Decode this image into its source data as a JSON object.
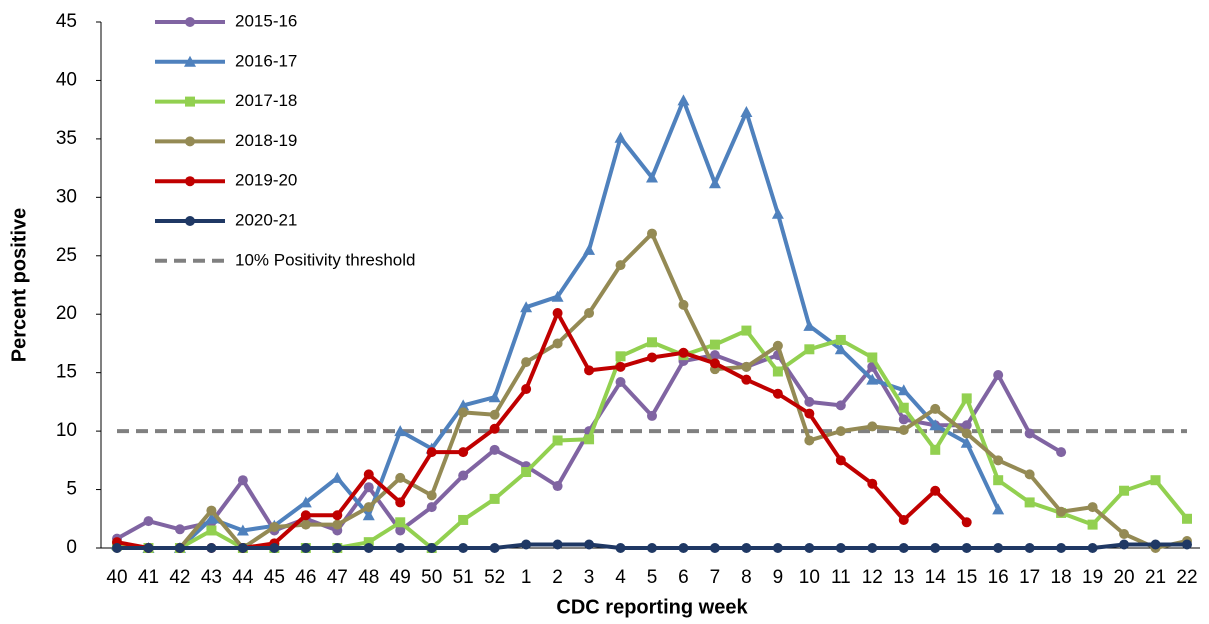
{
  "chart_data": {
    "type": "line",
    "x_label": "CDC reporting week",
    "y_label": "Percent positive",
    "categories": [
      "40",
      "41",
      "42",
      "43",
      "44",
      "45",
      "46",
      "47",
      "48",
      "49",
      "50",
      "51",
      "52",
      "1",
      "2",
      "3",
      "4",
      "5",
      "6",
      "7",
      "8",
      "9",
      "10",
      "11",
      "12",
      "13",
      "14",
      "15",
      "16",
      "17",
      "18",
      "19",
      "20",
      "21",
      "22"
    ],
    "ylim": [
      0,
      45
    ],
    "yticks": [
      0,
      5,
      10,
      15,
      20,
      25,
      30,
      35,
      40,
      45
    ],
    "grid": false,
    "legend": "top-left",
    "series": [
      {
        "name": "2015-16",
        "color": "#8064a2",
        "marker": "circle",
        "values": [
          0.8,
          2.3,
          1.6,
          2.2,
          5.8,
          1.5,
          2.5,
          1.5,
          5.2,
          1.5,
          3.5,
          6.2,
          8.4,
          7.0,
          5.3,
          10.0,
          14.2,
          11.3,
          16.0,
          16.5,
          15.5,
          16.5,
          12.5,
          12.2,
          15.5,
          11.0,
          10.5,
          10.5,
          14.8,
          9.8,
          8.2,
          null,
          null,
          null,
          null
        ]
      },
      {
        "name": "2016-17",
        "color": "#4f81bd",
        "marker": "triangle",
        "values": [
          0.3,
          0,
          0,
          2.5,
          1.5,
          1.9,
          3.9,
          6.0,
          2.8,
          10.0,
          8.5,
          12.2,
          12.9,
          20.6,
          21.5,
          25.5,
          35.1,
          31.7,
          38.3,
          31.2,
          37.3,
          28.6,
          19.0,
          17.0,
          14.4,
          13.5,
          10.5,
          9.0,
          3.3,
          null,
          null,
          null,
          null,
          null,
          null
        ]
      },
      {
        "name": "2017-18",
        "color": "#92d050",
        "marker": "square",
        "values": [
          0.2,
          0,
          0,
          1.5,
          0,
          0,
          0,
          0,
          0.5,
          2.2,
          0,
          2.4,
          4.2,
          6.5,
          9.2,
          9.3,
          16.4,
          17.6,
          16.5,
          17.4,
          18.6,
          15.1,
          17.0,
          17.8,
          16.3,
          12.0,
          8.4,
          12.8,
          5.8,
          3.9,
          3.0,
          2.0,
          4.9,
          5.8,
          2.5
        ]
      },
      {
        "name": "2018-19",
        "color": "#948a54",
        "marker": "circle",
        "values": [
          0,
          0,
          0,
          3.2,
          0,
          1.8,
          2.0,
          2.0,
          3.5,
          6.0,
          4.5,
          11.6,
          11.4,
          15.9,
          17.5,
          20.1,
          24.2,
          26.9,
          20.8,
          15.3,
          15.5,
          17.3,
          9.2,
          10.0,
          10.4,
          10.1,
          11.9,
          9.8,
          7.5,
          6.3,
          3.1,
          3.5,
          1.2,
          0,
          0.6
        ]
      },
      {
        "name": "2019-20",
        "color": "#c00000",
        "marker": "circle",
        "values": [
          0.5,
          0,
          0,
          0,
          0,
          0.4,
          2.8,
          2.8,
          6.3,
          3.9,
          8.2,
          8.2,
          10.2,
          13.6,
          20.1,
          15.2,
          15.5,
          16.3,
          16.7,
          15.8,
          14.4,
          13.2,
          11.5,
          7.5,
          5.5,
          2.4,
          4.9,
          2.2,
          null,
          null,
          null,
          null,
          null,
          null,
          null
        ]
      },
      {
        "name": "2020-21",
        "color": "#1f3864",
        "marker": "circle",
        "values": [
          0,
          0,
          0,
          0,
          0,
          0,
          0,
          0,
          0,
          0,
          0,
          0,
          0,
          0.3,
          0.3,
          0.3,
          0,
          0,
          0,
          0,
          0,
          0,
          0,
          0,
          0,
          0,
          0,
          0,
          0,
          0,
          0,
          0,
          0.3,
          0.3,
          0.3
        ]
      }
    ],
    "threshold": {
      "name": "10% Positivity threshold",
      "value": 10,
      "color": "#808080"
    }
  }
}
